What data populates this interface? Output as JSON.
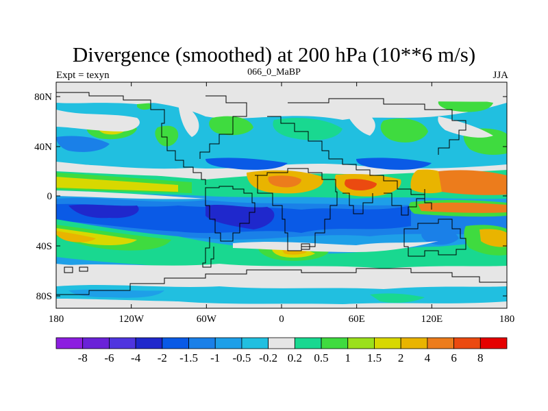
{
  "title": "Divergence (smoothed) at 200 hPa (10**6 m/s)",
  "subtitle_left": "Expt = texyn",
  "subtitle_center": "066_0_MaBP",
  "subtitle_right": "JJA",
  "x_ticks": [
    "180",
    "120W",
    "60W",
    "0",
    "60E",
    "120E",
    "180"
  ],
  "y_ticks": [
    "80N",
    "40N",
    "0",
    "40S",
    "80S"
  ],
  "colorbar": {
    "colors": [
      "#8c1ee0",
      "#6a22d8",
      "#4f35df",
      "#1f28cc",
      "#0a5ae6",
      "#1a80e8",
      "#1e9fe8",
      "#21bfe0",
      "#e6e6e6",
      "#19d890",
      "#3fdb3f",
      "#9be01c",
      "#d8d800",
      "#e9b400",
      "#ec7c1c",
      "#eb4a10",
      "#e60000"
    ],
    "labels": [
      "-8",
      "-6",
      "-4",
      "-2",
      "-1.5",
      "-1",
      "-0.5",
      "-0.2",
      "0.2",
      "0.5",
      "1",
      "1.5",
      "2",
      "4",
      "6",
      "8"
    ]
  },
  "map_colors": {
    "background": "#e6e6e6",
    "neg_light": "#21bfe0",
    "neg_mid": "#1e9fe8",
    "neg_strong": "#1a80e8",
    "neg_deep": "#0a5ae6",
    "neg_deepest": "#1f28cc",
    "pos_light": "#19d890",
    "pos_mid": "#3fdb3f",
    "pos_yellowgreen": "#9be01c",
    "pos_yellow": "#d8d800",
    "pos_orange": "#e9b400",
    "pos_deeporange": "#ec7c1c",
    "pos_red": "#eb4a10",
    "coast": "#000000"
  }
}
